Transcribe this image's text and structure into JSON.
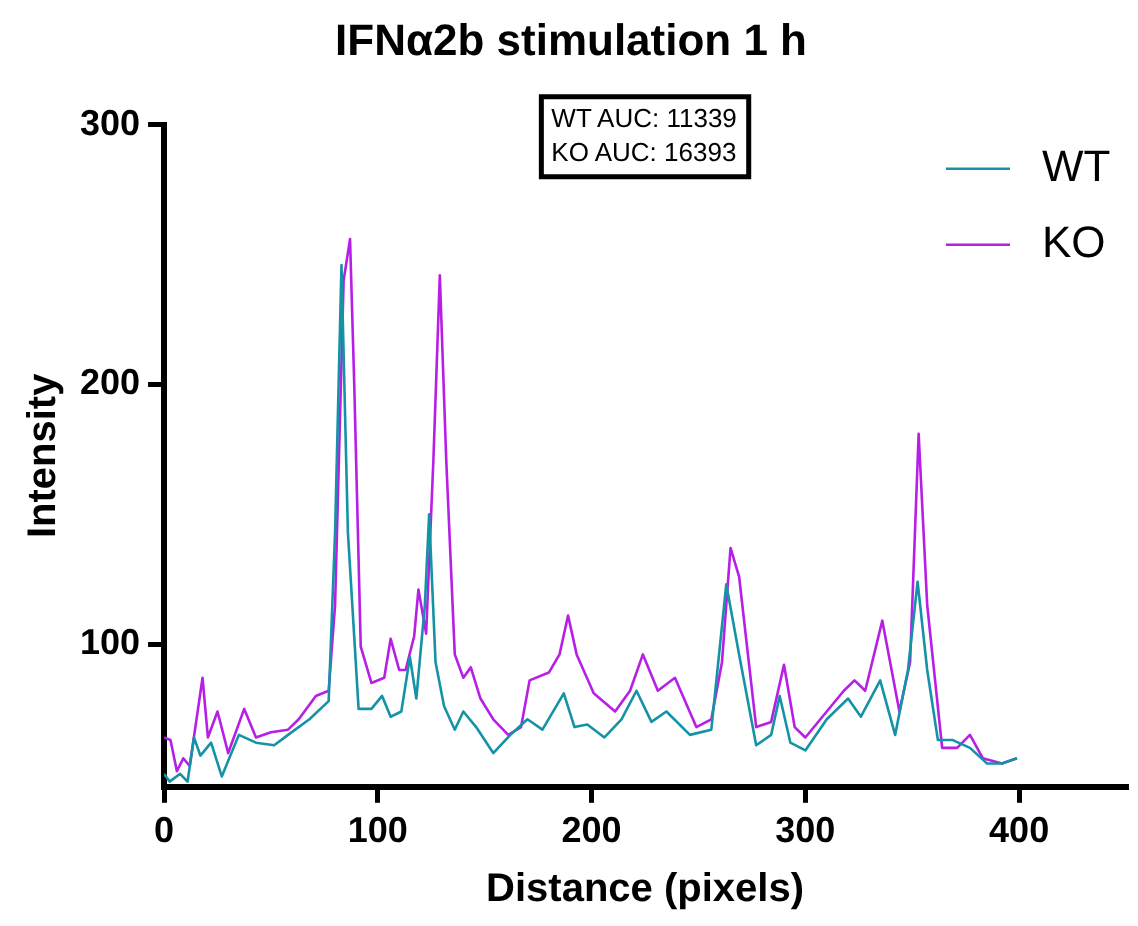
{
  "chart_data": {
    "type": "line",
    "title": "IFNα2b stimulation 1 h",
    "xlabel": "Distance (pixels)",
    "ylabel": "Intensity",
    "annotations": [
      "WT AUC: 11339",
      "KO AUC: 16393"
    ],
    "xlim": [
      0,
      450
    ],
    "xticks": [
      0,
      100,
      200,
      300,
      400
    ],
    "ylim": [
      45,
      300
    ],
    "yticks": [
      100,
      200,
      300
    ],
    "grid": false,
    "legend": "top right",
    "marker": "none",
    "line_style": "solid",
    "series": [
      {
        "name": "WT",
        "color": "#1593a6",
        "x": [
          0,
          2.6,
          7.5,
          11,
          14,
          17,
          22,
          27,
          35,
          43,
          51.5,
          58,
          68,
          77,
          80,
          83,
          86,
          91,
          97,
          102,
          106,
          111,
          115,
          118,
          122,
          124,
          127,
          131,
          136,
          140,
          146,
          154,
          162,
          170,
          177,
          187,
          192,
          198,
          206,
          214,
          221,
          228,
          235,
          246,
          256,
          263,
          269,
          277,
          284,
          288,
          293,
          300,
          310,
          320,
          326,
          335,
          342,
          348,
          352.5,
          357,
          362,
          369,
          377,
          385,
          392,
          399
        ],
        "values": [
          50,
          47,
          50,
          47,
          64,
          57,
          62,
          49,
          65,
          62,
          61,
          65,
          71,
          78,
          143,
          246,
          143,
          75,
          75,
          80,
          72,
          74,
          95,
          79,
          115,
          150,
          93,
          76,
          67,
          74,
          68,
          58,
          65,
          71,
          67,
          81,
          68,
          69,
          64,
          71,
          82,
          70,
          74,
          65,
          67,
          123,
          96,
          61,
          65,
          80,
          62,
          59,
          71,
          79,
          72,
          86,
          65,
          90,
          124,
          90,
          63,
          63,
          60,
          54,
          54,
          56
        ]
      },
      {
        "name": "KO",
        "color": "#b81fe6",
        "x": [
          0,
          3,
          6,
          9,
          12,
          18,
          20.5,
          25,
          30,
          37.5,
          43,
          50,
          58,
          63,
          71,
          77,
          80,
          84,
          87,
          89,
          92,
          97,
          103,
          106,
          110,
          113,
          117,
          119,
          122.6,
          126,
          129,
          132,
          136,
          140,
          143.5,
          148,
          154,
          161,
          167,
          171,
          180,
          185,
          189,
          193,
          201,
          211,
          218,
          224,
          231,
          239,
          249,
          256,
          261,
          265,
          269,
          277,
          284,
          290,
          295,
          300,
          310,
          318,
          323,
          328,
          336,
          344,
          349,
          353,
          357,
          364,
          371,
          377,
          383,
          392,
          399
        ],
        "values": [
          64,
          63,
          51,
          56,
          53,
          87,
          64,
          74,
          58,
          75,
          64,
          66,
          67,
          71,
          80,
          82,
          115,
          240,
          256,
          199,
          99,
          85,
          87,
          102,
          90,
          90,
          103,
          121,
          104,
          171,
          242,
          171,
          96,
          87,
          91,
          79,
          71,
          65,
          68,
          86,
          89,
          96,
          111,
          96,
          81,
          74,
          82,
          96,
          82,
          87,
          68,
          71,
          93,
          137,
          126,
          68,
          70,
          92,
          68,
          64,
          74,
          82,
          86,
          82,
          109,
          74,
          93,
          181,
          115,
          60,
          60,
          65,
          56,
          54,
          56
        ]
      }
    ]
  }
}
